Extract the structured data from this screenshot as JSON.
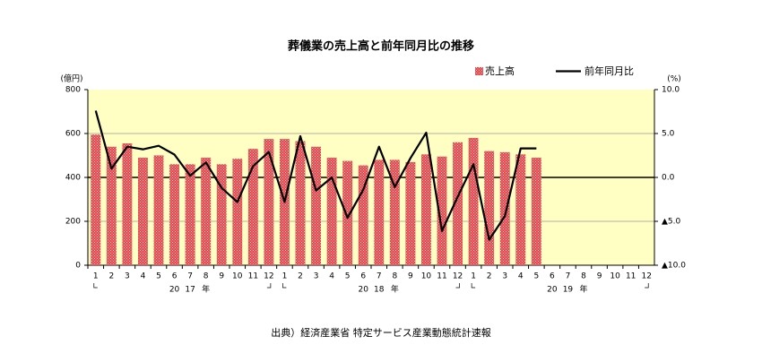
{
  "chart_data": {
    "type": "bar",
    "title": "葬儀業の売上高と前年同月比の推移",
    "y_label": "(億円)",
    "y2_label": "(%)",
    "source": "出典）経済産業省 特定サービス産業動態統計速報",
    "categories": [
      "1",
      "2",
      "3",
      "4",
      "5",
      "6",
      "7",
      "8",
      "9",
      "10",
      "11",
      "12",
      "1",
      "2",
      "3",
      "4",
      "5",
      "6",
      "7",
      "8",
      "9",
      "10",
      "11",
      "12",
      "1",
      "2",
      "3",
      "4",
      "5",
      "6",
      "7",
      "8",
      "9",
      "10",
      "11",
      "12"
    ],
    "year_labels": [
      [
        "20",
        "17",
        "年"
      ],
      [
        "20",
        "18",
        "年"
      ],
      [
        "20",
        "19",
        "年"
      ]
    ],
    "ylim": [
      0,
      800
    ],
    "yticks": [
      0,
      200,
      400,
      600,
      800
    ],
    "y2lim": [
      -10,
      10
    ],
    "y2ticks": [
      {
        "value": 10,
        "label": "10.0"
      },
      {
        "value": 5,
        "label": "5.0"
      },
      {
        "value": 0,
        "label": "0.0"
      },
      {
        "value": -5,
        "label": "▲5.0"
      },
      {
        "value": -10,
        "label": "▲10.0"
      }
    ],
    "grid": true,
    "legend": "top-right",
    "plot_background": "#ffffc4",
    "series": [
      {
        "name": "売上高",
        "type": "bar",
        "color": "#e0464b",
        "values": [
          595,
          540,
          555,
          490,
          500,
          460,
          460,
          490,
          460,
          485,
          530,
          575,
          575,
          565,
          540,
          490,
          475,
          455,
          480,
          480,
          470,
          505,
          495,
          560,
          580,
          520,
          515,
          505,
          490,
          null,
          null,
          null,
          null,
          null,
          null,
          null
        ]
      },
      {
        "name": "前年同月比",
        "type": "line",
        "axis": "y2",
        "color": "#000000",
        "values": [
          7.6,
          1.0,
          3.5,
          3.2,
          3.6,
          2.6,
          0.2,
          1.7,
          -1.2,
          -2.8,
          1.3,
          2.9,
          -2.8,
          4.7,
          -1.5,
          0.0,
          -4.6,
          -1.4,
          3.5,
          -1.1,
          2.2,
          5.1,
          -6.1,
          -2.2,
          1.5,
          -7.1,
          -4.4,
          3.3,
          3.3,
          null,
          null,
          null,
          null,
          null,
          null,
          null
        ]
      }
    ]
  }
}
